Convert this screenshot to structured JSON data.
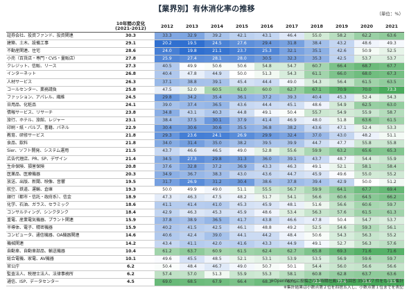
{
  "title": "【業界別】有休消化率の推移",
  "unit": "（単位：%）",
  "chart_data": {
    "type": "table",
    "change_header": "10年間の変化\n(2021-2012)",
    "years": [
      "2012",
      "2013",
      "2014",
      "2015",
      "2016",
      "2017",
      "2018",
      "2019",
      "2020",
      "2021"
    ],
    "rows": [
      {
        "industry": "証券会社、投資ファンド、投資関連",
        "change": "30.3",
        "values": [
          33.3,
          32.9,
          39.2,
          42.1,
          43.1,
          46.4,
          55.0,
          58.2,
          62.2,
          63.6
        ]
      },
      {
        "industry": "建築、土木、設備工事",
        "change": "29.1",
        "values": [
          20.2,
          19.5,
          24.5,
          27.6,
          29.4,
          31.8,
          38.4,
          43.2,
          48.6,
          49.3
        ]
      },
      {
        "industry": "不動産関連、住宅",
        "change": "28.6",
        "values": [
          24.0,
          19.8,
          21.1,
          23.7,
          25.3,
          32.1,
          35.1,
          42.6,
          50.9,
          52.5
        ]
      },
      {
        "industry": "小売（百貨店・専門・CVS・量販店）",
        "change": "27.8",
        "values": [
          25.9,
          27.4,
          28.1,
          28.0,
          30.5,
          32.3,
          35.3,
          42.5,
          53.7,
          53.7
        ]
      },
      {
        "industry": "クレジット、信販、リース",
        "change": "27.3",
        "values": [
          40.5,
          49.9,
          50.6,
          50.6,
          54.8,
          54.7,
          60.7,
          66.4,
          68.7,
          67.7
        ]
      },
      {
        "industry": "インターネット",
        "change": "26.8",
        "values": [
          40.4,
          47.8,
          44.9,
          50.0,
          51.3,
          54.3,
          61.1,
          66.0,
          68.0,
          67.3
        ]
      },
      {
        "industry": "人材サービス",
        "change": "26.3",
        "values": [
          37.1,
          38.8,
          39.1,
          45.4,
          44.4,
          49.0,
          54.3,
          56.4,
          61.5,
          63.5
        ]
      },
      {
        "industry": "コールセンター、業務請負",
        "change": "25.8",
        "values": [
          47.5,
          52.0,
          60.5,
          61.0,
          60.0,
          62.7,
          67.1,
          70.9,
          70.0,
          73.3
        ]
      },
      {
        "industry": "ファッション、アパレル、繊維",
        "change": "24.5",
        "values": [
          29.8,
          34.2,
          35.4,
          36.1,
          37.2,
          39.3,
          40.4,
          45.3,
          52.4,
          54.3
        ]
      },
      {
        "industry": "日用品、化粧品",
        "change": "24.1",
        "values": [
          39.0,
          37.4,
          36.5,
          43.6,
          44.4,
          45.1,
          48.6,
          54.9,
          62.5,
          63.0
        ]
      },
      {
        "industry": "情報サービス、リサーチ",
        "change": "23.8",
        "values": [
          34.8,
          43.1,
          40.3,
          44.8,
          49.1,
          50.4,
          55.7,
          54.9,
          55.9,
          58.7
        ]
      },
      {
        "industry": "旅行、ホテル、旅館、レジャー",
        "change": "23.1",
        "values": [
          38.4,
          37.5,
          30.1,
          37.9,
          41.4,
          46.9,
          48.0,
          51.8,
          63.6,
          61.5
        ]
      },
      {
        "industry": "印刷・紙・パルプ、書籍、パネル",
        "change": "22.9",
        "values": [
          30.4,
          30.6,
          30.6,
          35.5,
          36.8,
          38.2,
          43.6,
          47.1,
          52.4,
          53.3
        ]
      },
      {
        "industry": "教育、研修サービス",
        "change": "21.8",
        "values": [
          29.3,
          23.6,
          24.1,
          26.9,
          29.9,
          32.4,
          37.0,
          43.0,
          48.2,
          51.1
        ]
      },
      {
        "industry": "食品、飲料",
        "change": "21.8",
        "values": [
          34.0,
          31.4,
          35.0,
          38.2,
          39.5,
          39.9,
          44.7,
          47.7,
          55.8,
          55.8
        ]
      },
      {
        "industry": "Sier、ソフト開発、システム運用",
        "change": "21.5",
        "values": [
          43.7,
          46.6,
          46.5,
          49.0,
          52.8,
          55.6,
          59.9,
          63.2,
          65.6,
          65.3
        ]
      },
      {
        "industry": "広告代理店、PR、SP、デザイン",
        "change": "21.4",
        "values": [
          34.5,
          27.3,
          29.8,
          31.3,
          36.0,
          39.1,
          43.7,
          48.7,
          54.4,
          55.9
        ]
      },
      {
        "industry": "生命保険、損害保険",
        "change": "20.8",
        "values": [
          37.6,
          32.8,
          37.2,
          36.9,
          43.3,
          46.3,
          49.1,
          52.1,
          58.1,
          58.4
        ]
      },
      {
        "industry": "医薬品、医療機器",
        "change": "20.3",
        "values": [
          34.9,
          36.7,
          38.3,
          43.0,
          43.6,
          44.7,
          45.9,
          49.6,
          55.0,
          55.2
        ]
      },
      {
        "industry": "放送、出版、新聞、映像、音響",
        "change": "19.5",
        "values": [
          31.7,
          26.9,
          31.2,
          30.4,
          38.6,
          37.8,
          39.4,
          42.9,
          50.0,
          51.2
        ]
      },
      {
        "industry": "航空、鉄道、運輸、倉庫",
        "change": "19.3",
        "values": [
          50.0,
          49.9,
          49.0,
          51.1,
          55.5,
          56.7,
          59.9,
          64.1,
          67.7,
          69.4
        ]
      },
      {
        "industry": "銀行（都市・信託・政府系）、信金",
        "change": "18.9",
        "values": [
          47.3,
          46.3,
          47.5,
          48.2,
          51.7,
          54.1,
          56.6,
          60.6,
          64.5,
          66.2
        ]
      },
      {
        "industry": "化学、石油、ガラス、セラミック",
        "change": "18.6",
        "values": [
          41.1,
          41.4,
          41.0,
          45.3,
          45.9,
          48.1,
          51.6,
          56.6,
          60.6,
          59.7
        ]
      },
      {
        "industry": "コンサルティング、シンクタンク",
        "change": "18.4",
        "values": [
          42.9,
          46.3,
          45.3,
          45.9,
          48.6,
          53.4,
          56.3,
          57.6,
          61.5,
          61.3
        ]
      },
      {
        "industry": "重電、産業電気機器、プラント関連",
        "change": "15.9",
        "values": [
          37.8,
          38.9,
          36.5,
          41.7,
          43.8,
          46.6,
          47.8,
          50.4,
          54.7,
          53.7
        ]
      },
      {
        "industry": "半導体、電子、精密機器",
        "change": "15.9",
        "values": [
          40.2,
          41.5,
          42.5,
          46.1,
          48.8,
          49.2,
          52.5,
          54.6,
          59.3,
          56.1
        ]
      },
      {
        "industry": "コンピュータ、通信機器、OA機器関連",
        "change": "14.6",
        "values": [
          40.6,
          42.4,
          39.0,
          44.1,
          44.2,
          48.4,
          50.6,
          54.3,
          56.3,
          55.2
        ]
      },
      {
        "industry": "機械関連",
        "change": "14.2",
        "values": [
          43.4,
          41.1,
          42.0,
          41.6,
          43.3,
          44.9,
          49.1,
          52.7,
          56.3,
          57.6
        ]
      },
      {
        "industry": "自動車、自動車部品、輸送機器",
        "change": "10.4",
        "values": [
          61.2,
          63.7,
          60.9,
          61.5,
          62.4,
          62.7,
          65.8,
          69.3,
          71.6,
          71.6
        ]
      },
      {
        "industry": "総合電機、家電、AV機器",
        "change": "10.1",
        "values": [
          49.6,
          45.5,
          48.5,
          52.1,
          53.1,
          53.9,
          53.5,
          56.9,
          59.6,
          59.7
        ]
      },
      {
        "industry": "官公庁",
        "change": "6.2",
        "values": [
          50.4,
          48.4,
          46.7,
          49.0,
          50.7,
          50.1,
          54.4,
          56.0,
          56.6,
          56.6
        ]
      },
      {
        "industry": "監査法人、税理士法人、法律事務所",
        "change": "6.2",
        "values": [
          57.4,
          57.0,
          51.3,
          55.9,
          55.3,
          58.1,
          60.8,
          62.8,
          63.7,
          63.6
        ]
      },
      {
        "industry": "通信、ISP、データセンター",
        "change": "4.5",
        "values": [
          69.0,
          68.5,
          67.9,
          66.4,
          68.3,
          67.5,
          72.2,
          73.4,
          73.6,
          73.5
        ]
      }
    ],
    "colors": {
      "low": "#2f6fd0",
      "mid": "#ffffff",
      "high": "#38a34d"
    }
  },
  "notes": [
    "※OpenWork に投稿された時期社員による回答 350,627 件をもとに集計",
    "※集計結果は小数点第２位を四捨五入し、小数点第１位までを表記"
  ]
}
